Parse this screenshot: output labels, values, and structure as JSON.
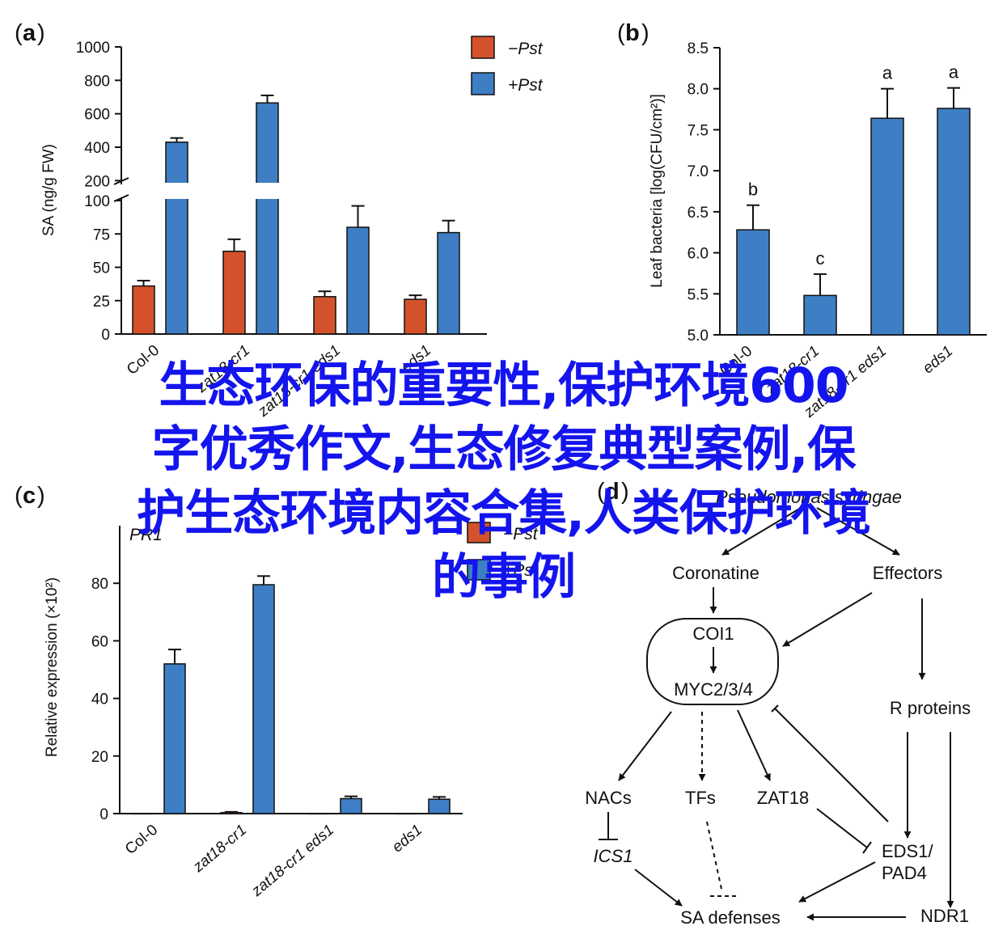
{
  "overlay": {
    "lines": [
      "生态环保的重要性,保护环境600",
      "字优秀作文,生态修复典型案例,保",
      "护生态环境内容合集,人类保护环境",
      "的事例"
    ],
    "color": "#1414ee"
  },
  "colors": {
    "minus_pst": "#d4522b",
    "plus_pst": "#3d7ec4"
  },
  "panels": {
    "a": {
      "letter": "a"
    },
    "b": {
      "letter": "b"
    },
    "c": {
      "letter": "c",
      "gene_label": "PR1"
    },
    "d": {
      "letter": "d"
    }
  },
  "chart_data": [
    {
      "panel": "a",
      "type": "bar",
      "ylabel": "SA (ng/g FW)",
      "categories": [
        "Col-0",
        "zat18-cr1",
        "zat18-cr1 eds1",
        "eds1"
      ],
      "series": [
        {
          "name": "−Pst",
          "values": [
            36,
            62,
            28,
            26
          ],
          "errors": [
            4,
            9,
            4,
            3
          ]
        },
        {
          "name": "+Pst",
          "values": [
            430,
            665,
            80,
            76
          ],
          "errors": [
            25,
            45,
            16,
            9
          ]
        }
      ],
      "axis_break": true,
      "lower_ticks": [
        0,
        25,
        50,
        75,
        100
      ],
      "upper_ticks": [
        200,
        400,
        600,
        800,
        1000
      ],
      "lower_range": [
        0,
        100
      ],
      "upper_range": [
        100,
        1000
      ]
    },
    {
      "panel": "b",
      "type": "bar",
      "ylabel": "Leaf bacteria [log(CFU/cm²)]",
      "categories": [
        "Col-0",
        "zat18-cr1",
        "zat18-cr1 eds1",
        "eds1"
      ],
      "series": [
        {
          "name": "",
          "values": [
            6.28,
            5.48,
            7.64,
            7.76
          ],
          "errors": [
            0.3,
            0.26,
            0.36,
            0.25
          ]
        }
      ],
      "significance": [
        "b",
        "c",
        "a",
        "a"
      ],
      "ylim": [
        5.0,
        8.5
      ],
      "yticks": [
        "5.0",
        "5.5",
        "6.0",
        "6.5",
        "7.0",
        "7.5",
        "8.0",
        "8.5"
      ]
    },
    {
      "panel": "c",
      "type": "bar",
      "ylabel": "Relative expression (×10²)",
      "categories": [
        "Col-0",
        "zat18-cr1",
        "zat18-cr1 eds1",
        "eds1"
      ],
      "series": [
        {
          "name": "−Pst",
          "values": [
            0,
            0.4,
            0,
            0
          ],
          "errors": [
            0,
            0.2,
            0,
            0
          ]
        },
        {
          "name": "+Pst",
          "values": [
            52,
            79.5,
            5.2,
            5
          ],
          "errors": [
            5,
            3,
            0.8,
            0.8
          ]
        }
      ],
      "ylim": [
        0,
        100
      ],
      "yticks": [
        0,
        20,
        40,
        60,
        80
      ]
    }
  ],
  "diagram": {
    "top": "Pseudomonas syringae",
    "coronatine": "Coronatine",
    "effectors": "Effectors",
    "coi1": "COI1",
    "myc": "MYC2/3/4",
    "r_proteins": "R proteins",
    "nacs": "NACs",
    "tfs": "TFs",
    "zat18": "ZAT18",
    "ics1": "ICS1",
    "eds1_line1": "EDS1/",
    "eds1_line2": "PAD4",
    "ndr1": "NDR1",
    "sa_defenses": "SA defenses"
  }
}
